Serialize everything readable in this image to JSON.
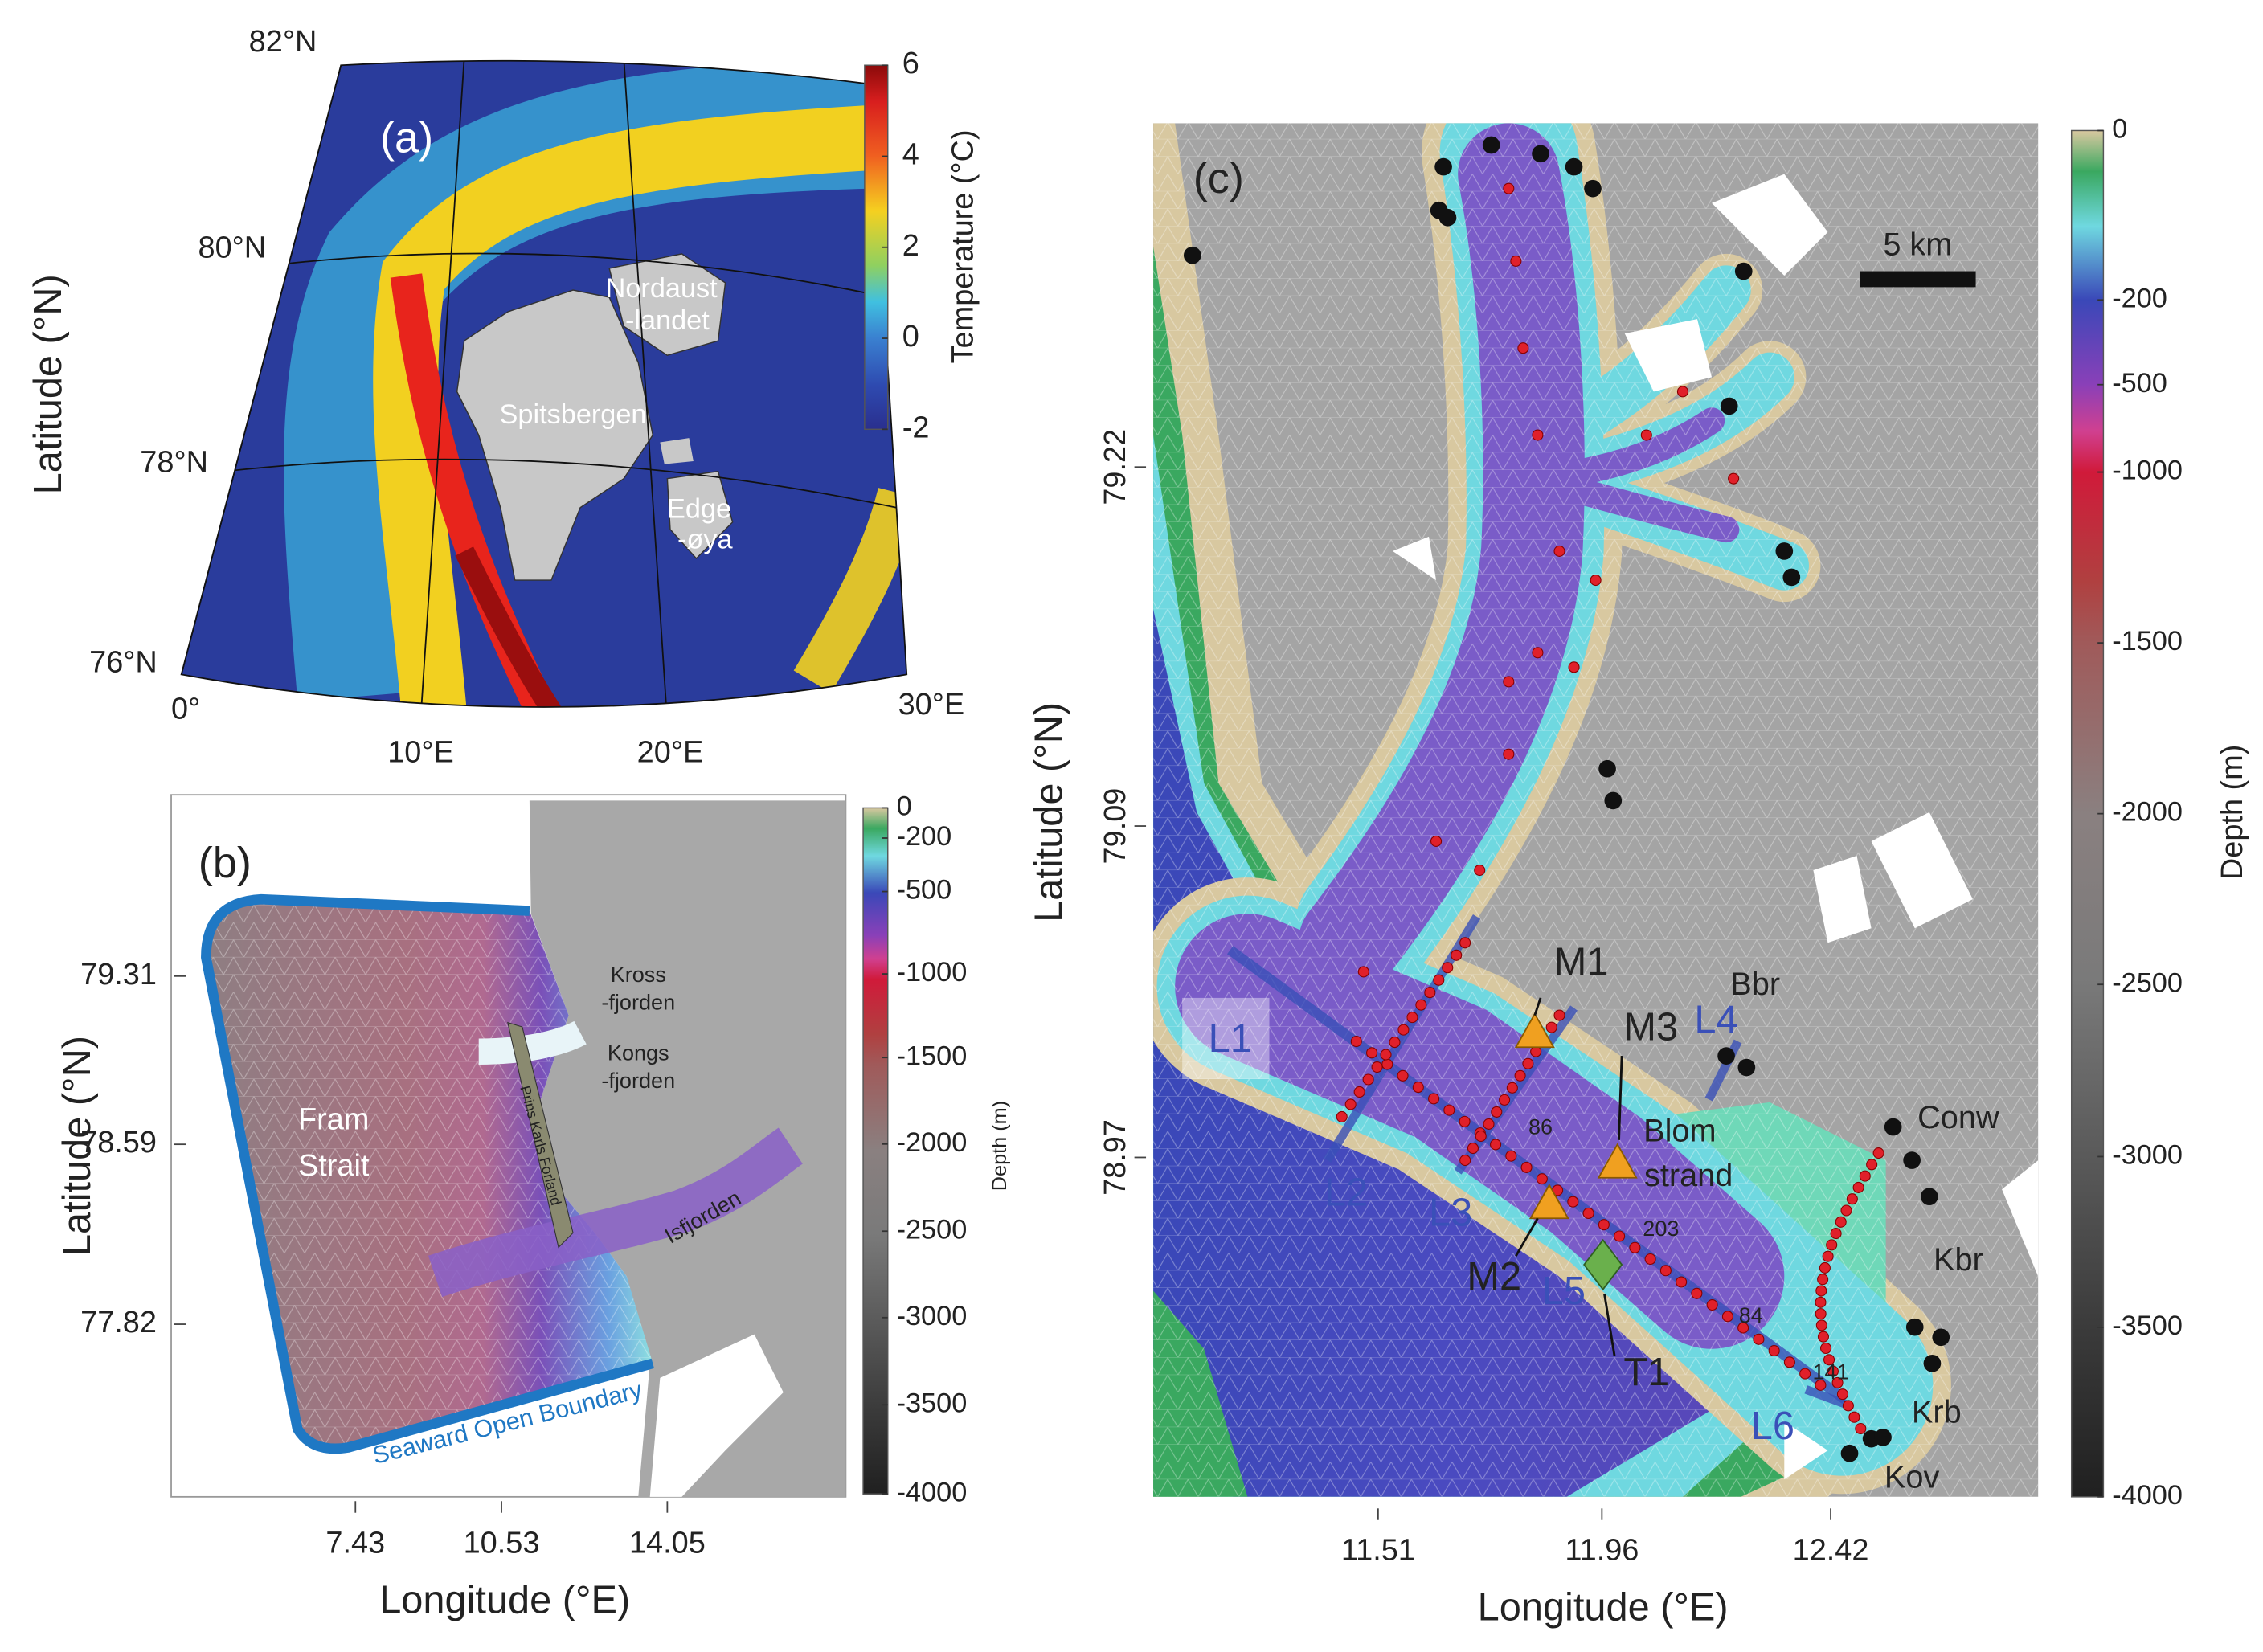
{
  "panel_a": {
    "label": "(a)",
    "y_axis_label": "Latitude (°N)",
    "lat_ticks": [
      "82°N",
      "80°N",
      "78°N",
      "76°N"
    ],
    "lon_ticks": [
      "0°",
      "10°E",
      "20°E",
      "30°E"
    ],
    "colorbar": {
      "title": "Temperature (°C)",
      "ticks": [
        6,
        4,
        2,
        0,
        -2
      ]
    },
    "places": {
      "nordaustlandet": [
        "Nordaust",
        "-landet"
      ],
      "spitsbergen": "Spitsbergen",
      "edgeoya": [
        "Edge",
        "-øya"
      ]
    }
  },
  "panel_b": {
    "label": "(b)",
    "x_axis_label": "Longitude (°E)",
    "y_axis_label": "Latitude (°N)",
    "lat_ticks": [
      79.31,
      78.59,
      77.82
    ],
    "lon_ticks": [
      7.43,
      10.53,
      14.05
    ],
    "colorbar": {
      "title": "Depth (m)",
      "ticks": [
        0,
        -200,
        -500,
        -1000,
        -1500,
        -2000,
        -2500,
        -3000,
        -3500,
        -4000
      ]
    },
    "places": {
      "krossfjorden": [
        "Kross",
        "-fjorden"
      ],
      "kongsfjorden": [
        "Kongs",
        "-fjorden"
      ],
      "prins_karls_forland": "Prins Karls Forland",
      "isfjorden": "Isfjorden",
      "fram_strait": [
        "Fram",
        "Strait"
      ]
    },
    "boundary_label": "Seaward Open Boundary"
  },
  "panel_c": {
    "label": "(c)",
    "x_axis_label": "Longitude (°E)",
    "y_axis_label": "Latitude (°N)",
    "lat_ticks": [
      79.22,
      79.09,
      78.97
    ],
    "lon_ticks": [
      11.51,
      11.96,
      12.42
    ],
    "scale_bar": "5 km",
    "colorbar": {
      "title": "Depth (m)",
      "ticks": [
        0,
        -200,
        -500,
        -1000,
        -1500,
        -2000,
        -2500,
        -3000,
        -3500,
        -4000
      ]
    },
    "transects": [
      "L1",
      "L2",
      "L3",
      "L4",
      "L5",
      "L6"
    ],
    "moorings": [
      "M1",
      "M2",
      "M3"
    ],
    "sites": {
      "bbr": "Bbr",
      "blomstrand": [
        "Blom",
        "strand"
      ],
      "conw": "Conw",
      "kbr": "Kbr",
      "krb": "Krb",
      "kov": "Kov",
      "t1": "T1"
    },
    "point_labels": [
      "86",
      "203",
      "84",
      "141"
    ]
  }
}
